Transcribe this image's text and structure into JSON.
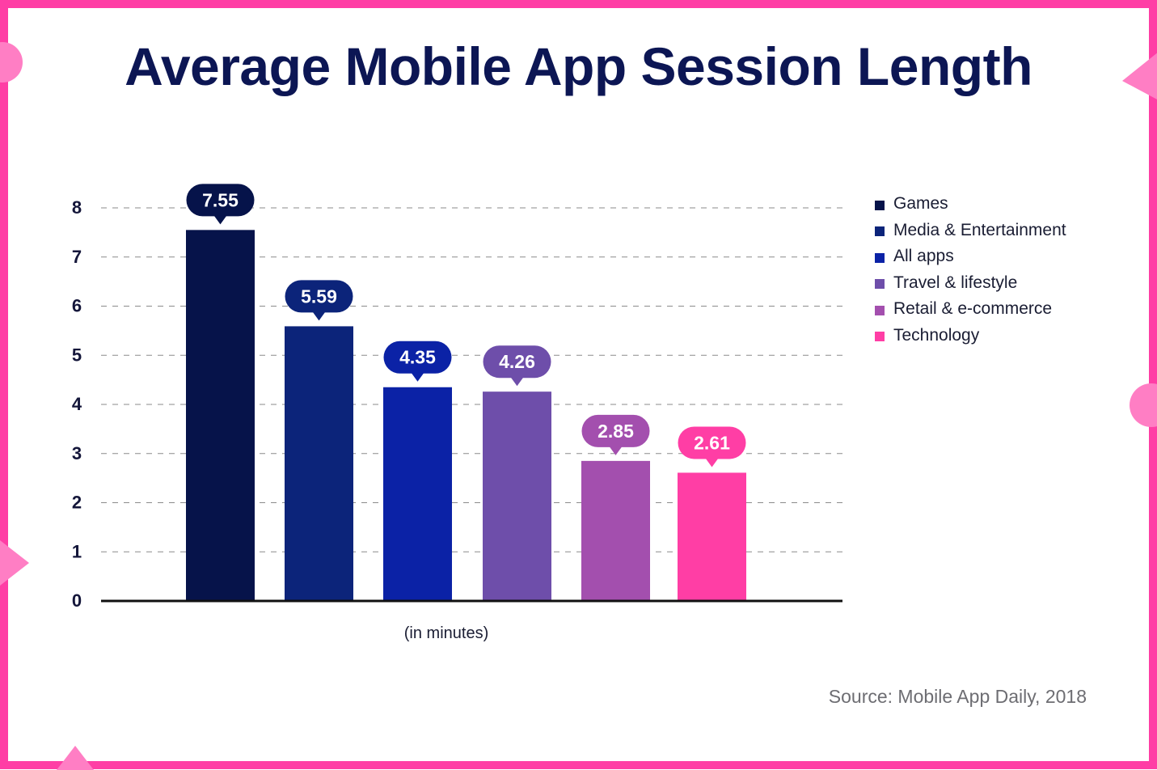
{
  "title": "Average Mobile App Session Length",
  "unit_label": "(in minutes)",
  "source": "Source: Mobile App Daily, 2018",
  "colors": {
    "frame": "#ff3ea5",
    "title": "#0c1654"
  },
  "chart_data": {
    "type": "bar",
    "title": "Average Mobile App Session Length",
    "xlabel": "(in minutes)",
    "ylabel": "",
    "ylim": [
      0,
      8
    ],
    "yticks": [
      0,
      1,
      2,
      3,
      4,
      5,
      6,
      7,
      8
    ],
    "grid": true,
    "legend_position": "right",
    "categories": [
      "Games",
      "Media & Entertainment",
      "All apps",
      "Travel & lifestyle",
      "Retail & e-commerce",
      "Technology"
    ],
    "values": [
      7.55,
      5.59,
      4.35,
      4.26,
      2.85,
      2.61
    ],
    "labels": [
      "7.55",
      "5.59",
      "4.35",
      "4.26",
      "2.85",
      "2.61"
    ],
    "colors": [
      "#06134a",
      "#0c247a",
      "#0b22a6",
      "#6e4eaa",
      "#a34fae",
      "#ff3ea5"
    ]
  }
}
